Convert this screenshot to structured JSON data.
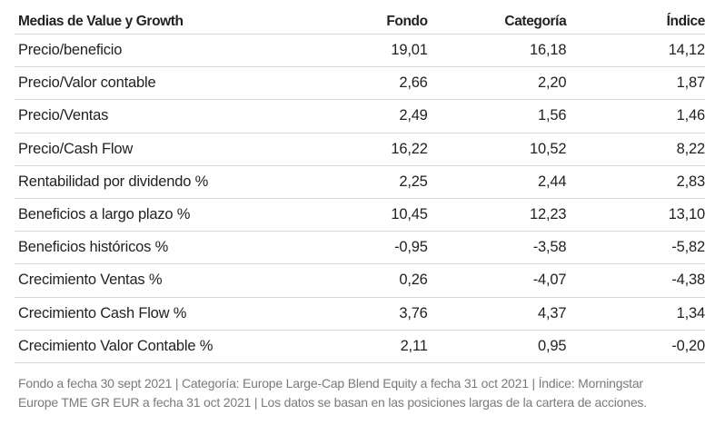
{
  "table": {
    "header": {
      "label": "Medias de Value y Growth",
      "col1": "Fondo",
      "col2": "Categoría",
      "col3": "Índice"
    },
    "rows": [
      {
        "label": "Precio/beneficio",
        "fondo": "19,01",
        "categoria": "16,18",
        "indice": "14,12"
      },
      {
        "label": "Precio/Valor contable",
        "fondo": "2,66",
        "categoria": "2,20",
        "indice": "1,87"
      },
      {
        "label": "Precio/Ventas",
        "fondo": "2,49",
        "categoria": "1,56",
        "indice": "1,46"
      },
      {
        "label": "Precio/Cash Flow",
        "fondo": "16,22",
        "categoria": "10,52",
        "indice": "8,22"
      },
      {
        "label": "Rentabilidad por dividendo %",
        "fondo": "2,25",
        "categoria": "2,44",
        "indice": "2,83"
      },
      {
        "label": "Beneficios a largo plazo %",
        "fondo": "10,45",
        "categoria": "12,23",
        "indice": "13,10"
      },
      {
        "label": "Beneficios históricos %",
        "fondo": "-0,95",
        "categoria": "-3,58",
        "indice": "-5,82"
      },
      {
        "label": "Crecimiento Ventas %",
        "fondo": "0,26",
        "categoria": "-4,07",
        "indice": "-4,38"
      },
      {
        "label": "Crecimiento Cash Flow %",
        "fondo": "3,76",
        "categoria": "4,37",
        "indice": "1,34"
      },
      {
        "label": "Crecimiento Valor Contable %",
        "fondo": "2,11",
        "categoria": "0,95",
        "indice": "-0,20"
      }
    ]
  },
  "footnote": {
    "line1": "Fondo a fecha 30 sept 2021 | Categoría: Europe Large-Cap Blend Equity a fecha 31 oct 2021 | Índice: Morningstar",
    "line2": "Europe TME GR EUR a fecha 31 oct 2021 | Los datos se basan en las posiciones largas de la cartera de acciones."
  }
}
